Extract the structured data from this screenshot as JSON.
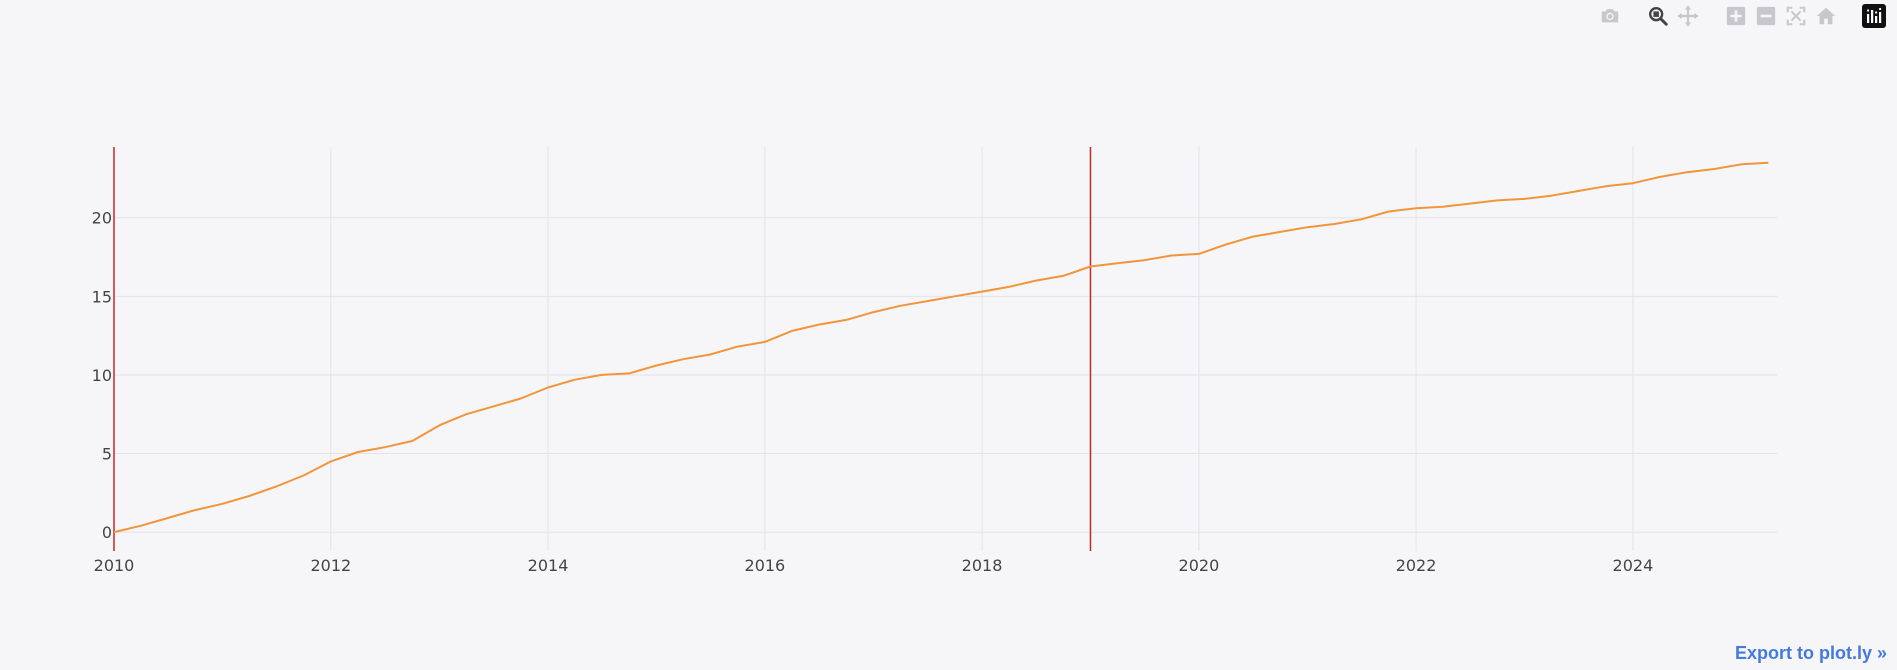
{
  "modebar": {
    "buttons": [
      {
        "icon": "camera-icon",
        "title": "Download plot as a png"
      },
      {
        "icon": "zoom-icon",
        "title": "Zoom"
      },
      {
        "icon": "pan-icon",
        "title": "Pan"
      },
      {
        "icon": "zoom-in-icon",
        "title": "Zoom in"
      },
      {
        "icon": "zoom-out-icon",
        "title": "Zoom out"
      },
      {
        "icon": "autoscale-icon",
        "title": "Autoscale"
      },
      {
        "icon": "home-icon",
        "title": "Reset axes"
      },
      {
        "icon": "plotly-logo-icon",
        "title": "Produced with Plotly"
      }
    ],
    "active_button": "zoom-icon",
    "icon_color": "#c8c8cc",
    "active_color": "#444444"
  },
  "export_link": "Export to plot.ly »",
  "colors": {
    "background": "#f6f6f9",
    "grid": "#e3e3e6",
    "line": "#f2953a",
    "vline": "#c62828",
    "tick_text": "#444444",
    "link": "#447adb"
  },
  "chart_data": {
    "type": "line",
    "title": "",
    "xlabel": "",
    "ylabel": "",
    "xlim": [
      "2010-01-01",
      "2025-04-30"
    ],
    "ylim": [
      -1.2,
      24.5
    ],
    "x_ticks": [
      "2010",
      "2012",
      "2014",
      "2016",
      "2018",
      "2020",
      "2022",
      "2024"
    ],
    "y_ticks": [
      "0",
      "5",
      "10",
      "15",
      "20"
    ],
    "grid": true,
    "legend": "none",
    "vertical_lines": [
      "2010-01-01",
      "2019-01-01"
    ],
    "series": [
      {
        "color": "#f2953a",
        "x": [
          "2010-01-01",
          "2010-04-01",
          "2010-07-01",
          "2010-10-01",
          "2011-01-01",
          "2011-04-01",
          "2011-07-01",
          "2011-10-01",
          "2012-01-01",
          "2012-04-01",
          "2012-07-01",
          "2012-10-01",
          "2013-01-01",
          "2013-04-01",
          "2013-07-01",
          "2013-10-01",
          "2014-01-01",
          "2014-04-01",
          "2014-07-01",
          "2014-10-01",
          "2015-01-01",
          "2015-04-01",
          "2015-07-01",
          "2015-10-01",
          "2016-01-01",
          "2016-04-01",
          "2016-07-01",
          "2016-10-01",
          "2017-01-01",
          "2017-04-01",
          "2017-07-01",
          "2017-10-01",
          "2018-01-01",
          "2018-04-01",
          "2018-07-01",
          "2018-10-01",
          "2019-01-01",
          "2019-04-01",
          "2019-07-01",
          "2019-10-01",
          "2020-01-01",
          "2020-04-01",
          "2020-07-01",
          "2020-10-01",
          "2021-01-01",
          "2021-04-01",
          "2021-07-01",
          "2021-10-01",
          "2022-01-01",
          "2022-04-01",
          "2022-07-01",
          "2022-10-01",
          "2023-01-01",
          "2023-04-01",
          "2023-07-01",
          "2023-10-01",
          "2024-01-01",
          "2024-04-01",
          "2024-07-01",
          "2024-10-01",
          "2025-01-01",
          "2025-04-01"
        ],
        "y": [
          0.0,
          0.4,
          0.9,
          1.4,
          1.8,
          2.3,
          2.9,
          3.6,
          4.5,
          5.1,
          5.4,
          5.8,
          6.8,
          7.5,
          8.0,
          8.5,
          9.2,
          9.7,
          10.0,
          10.1,
          10.6,
          11.0,
          11.3,
          11.8,
          12.1,
          12.8,
          13.2,
          13.5,
          14.0,
          14.4,
          14.7,
          15.0,
          15.3,
          15.6,
          16.0,
          16.3,
          16.9,
          17.1,
          17.3,
          17.6,
          17.7,
          18.3,
          18.8,
          19.1,
          19.4,
          19.6,
          19.9,
          20.4,
          20.6,
          20.7,
          20.9,
          21.1,
          21.2,
          21.4,
          21.7,
          22.0,
          22.2,
          22.6,
          22.9,
          23.1,
          23.4,
          23.5
        ]
      }
    ]
  }
}
